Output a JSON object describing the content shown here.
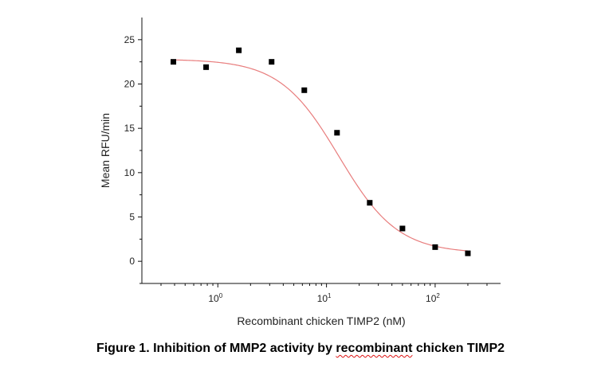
{
  "caption": {
    "prefix": "Figure 1. Inhibition of MMP2 activity by ",
    "underlined": "recombinant",
    "suffix": " chicken TIMP2"
  },
  "chart_data": {
    "type": "scatter",
    "xlabel": "Recombinant chicken TIMP2 (nM)",
    "ylabel": "Mean RFU/min",
    "x_scale": "log",
    "xlim": [
      0.2,
      400
    ],
    "ylim": [
      -2.5,
      27.5
    ],
    "y_ticks": [
      0,
      5,
      10,
      15,
      20,
      25
    ],
    "x_ticks": [
      {
        "value": 1,
        "base": "10",
        "exp": "0"
      },
      {
        "value": 10,
        "base": "10",
        "exp": "1"
      },
      {
        "value": 100,
        "base": "10",
        "exp": "2"
      }
    ],
    "grid": false,
    "marker_color": "#000000",
    "fit_color": "#e87d7d",
    "series": [
      {
        "x": [
          0.39,
          0.78,
          1.56,
          3.125,
          6.25,
          12.5,
          25,
          50,
          100,
          200
        ],
        "y": [
          22.5,
          21.9,
          23.8,
          22.5,
          19.3,
          14.5,
          6.6,
          3.7,
          1.6,
          0.9
        ]
      }
    ],
    "fit": {
      "model": "4PL",
      "top": 22.8,
      "bottom": 0.9,
      "ic50": 13,
      "hill": 1.6,
      "x_range": [
        0.39,
        200
      ]
    }
  }
}
